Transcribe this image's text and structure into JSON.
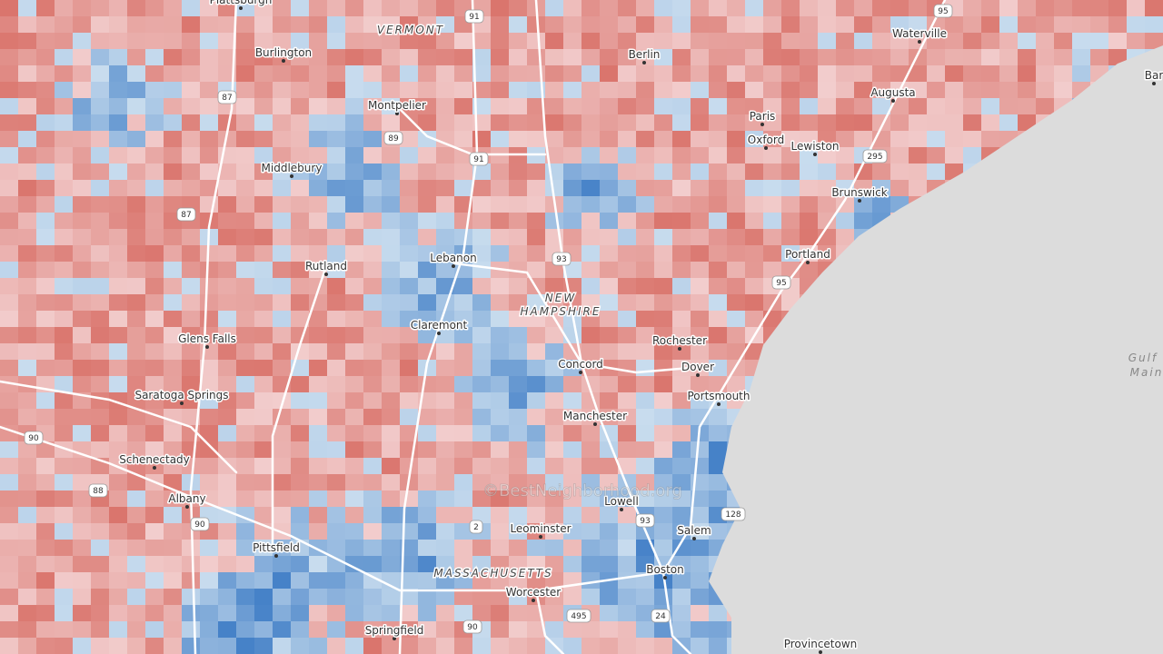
{
  "cities": [
    "Plattsburgh",
    "Burlington",
    "Montpelier",
    "Middlebury",
    "Rutland",
    "Lebanon",
    "Claremont",
    "Glens Falls",
    "Saratoga Springs",
    "Schenectady",
    "Albany",
    "Pittsfield",
    "Springfield",
    "Worcester",
    "Leominster",
    "Lowell",
    "Manchester",
    "Concord",
    "Portsmouth",
    "Dover",
    "Rochester",
    "Salem",
    "Boston",
    "Provincetown",
    "Portland",
    "Brunswick",
    "Lewiston",
    "Oxford",
    "Paris",
    "Augusta",
    "Waterville",
    "Berlin",
    "Bar"
  ],
  "states": [
    "VERMONT",
    "NEW",
    "HAMPSHIRE",
    "MASSACHUSETTS"
  ],
  "water": [
    "Gulf",
    "Main"
  ],
  "shields": [
    "91",
    "95",
    "87",
    "89",
    "91",
    "87",
    "93",
    "295",
    "95",
    "90",
    "88",
    "90",
    "2",
    "93",
    "128",
    "495",
    "90",
    "24"
  ],
  "watermark": "©BestNeighborhood.org"
}
